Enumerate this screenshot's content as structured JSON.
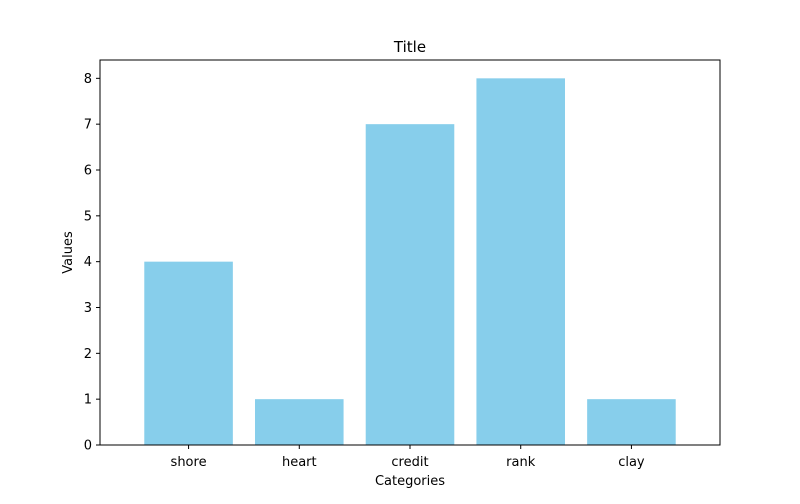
{
  "chart_data": {
    "type": "bar",
    "title": "Title",
    "xlabel": "Categories",
    "ylabel": "Values",
    "categories": [
      "shore",
      "heart",
      "credit",
      "rank",
      "clay"
    ],
    "values": [
      4,
      1,
      7,
      8,
      1
    ],
    "ylim": [
      0,
      8.4
    ],
    "yticks": [
      "0",
      "1",
      "2",
      "3",
      "4",
      "5",
      "6",
      "7",
      "8"
    ],
    "grid": false,
    "legend": "none",
    "bar_color": "#87ceeb",
    "axis_color": "#000000"
  }
}
